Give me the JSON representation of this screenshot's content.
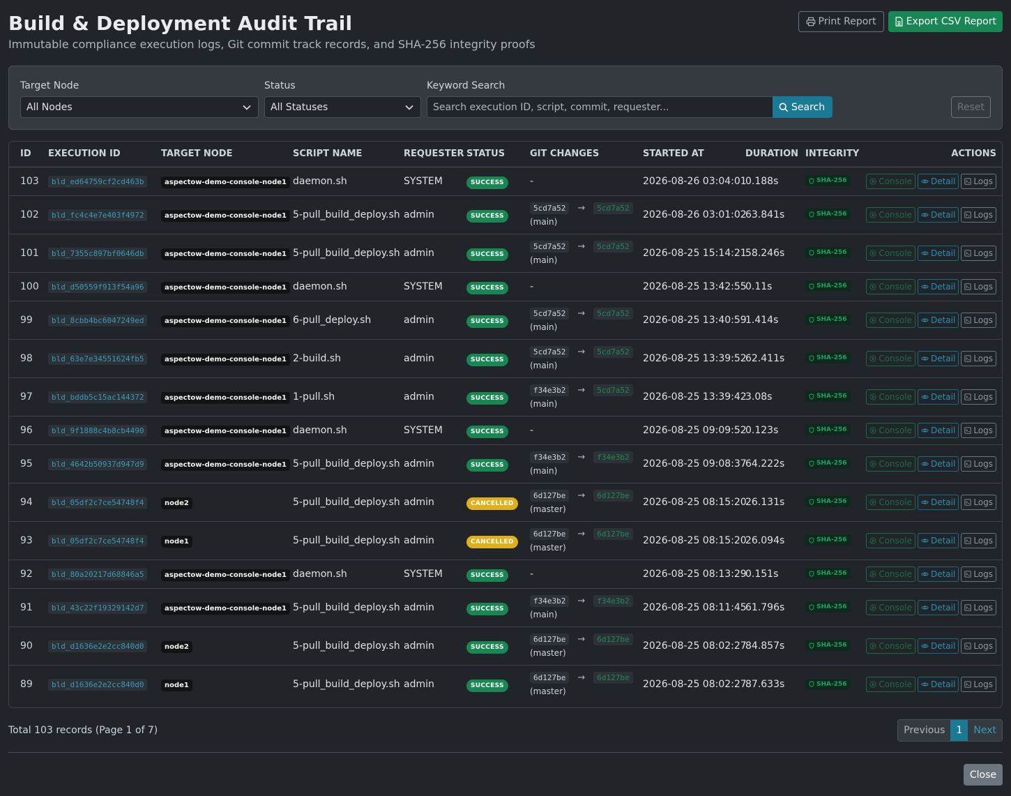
{
  "header": {
    "title": "Build & Deployment Audit Trail",
    "subtitle": "Immutable compliance execution logs, Git commit track records, and SHA-256 integrity proofs",
    "print_label": "Print Report",
    "export_label": "Export CSV Report"
  },
  "filters": {
    "node_label": "Target Node",
    "node_value": "All Nodes",
    "status_label": "Status",
    "status_value": "All Statuses",
    "keyword_label": "Keyword Search",
    "keyword_placeholder": "Search execution ID, script, commit, requester...",
    "search_label": "Search",
    "reset_label": "Reset"
  },
  "table": {
    "columns": [
      "ID",
      "EXECUTION ID",
      "TARGET NODE",
      "SCRIPT NAME",
      "REQUESTER",
      "STATUS",
      "GIT CHANGES",
      "STARTED AT",
      "DURATION",
      "INTEGRITY",
      "ACTIONS"
    ],
    "integrity_label": "SHA-256",
    "action_labels": {
      "console": "Console",
      "detail": "Detail",
      "logs": "Logs"
    },
    "rows": [
      {
        "id": "103",
        "exec_id": "bld_ed64759cf2cd463b",
        "node": "aspectow-demo-console-node1",
        "script": "daemon.sh",
        "requester": "SYSTEM",
        "status": "SUCCESS",
        "git": null,
        "started": "2026-08-26 03:04:01",
        "duration": "0.188s"
      },
      {
        "id": "102",
        "exec_id": "bld_fc4c4e7e403f4972",
        "node": "aspectow-demo-console-node1",
        "script": "5-pull_build_deploy.sh",
        "requester": "admin",
        "status": "SUCCESS",
        "git": {
          "from": "5cd7a52",
          "to": "5cd7a52",
          "branch": "(main)"
        },
        "started": "2026-08-26 03:01:02",
        "duration": "63.841s"
      },
      {
        "id": "101",
        "exec_id": "bld_7355c897bf0646db",
        "node": "aspectow-demo-console-node1",
        "script": "5-pull_build_deploy.sh",
        "requester": "admin",
        "status": "SUCCESS",
        "git": {
          "from": "5cd7a52",
          "to": "5cd7a52",
          "branch": "(main)"
        },
        "started": "2026-08-25 15:14:21",
        "duration": "58.246s"
      },
      {
        "id": "100",
        "exec_id": "bld_d50559f913f54a96",
        "node": "aspectow-demo-console-node1",
        "script": "daemon.sh",
        "requester": "SYSTEM",
        "status": "SUCCESS",
        "git": null,
        "started": "2026-08-25 13:42:55",
        "duration": "0.11s"
      },
      {
        "id": "99",
        "exec_id": "bld_8cbb4bc6047249ed",
        "node": "aspectow-demo-console-node1",
        "script": "6-pull_deploy.sh",
        "requester": "admin",
        "status": "SUCCESS",
        "git": {
          "from": "5cd7a52",
          "to": "5cd7a52",
          "branch": "(main)"
        },
        "started": "2026-08-25 13:40:59",
        "duration": "1.414s"
      },
      {
        "id": "98",
        "exec_id": "bld_63e7e34551624fb5",
        "node": "aspectow-demo-console-node1",
        "script": "2-build.sh",
        "requester": "admin",
        "status": "SUCCESS",
        "git": {
          "from": "5cd7a52",
          "to": "5cd7a52",
          "branch": "(main)"
        },
        "started": "2026-08-25 13:39:52",
        "duration": "62.411s"
      },
      {
        "id": "97",
        "exec_id": "bld_bddb5c15ac144372",
        "node": "aspectow-demo-console-node1",
        "script": "1-pull.sh",
        "requester": "admin",
        "status": "SUCCESS",
        "git": {
          "from": "f34e3b2",
          "to": "5cd7a52",
          "branch": "(main)"
        },
        "started": "2026-08-25 13:39:42",
        "duration": "3.08s"
      },
      {
        "id": "96",
        "exec_id": "bld_9f1888c4b8cb4490",
        "node": "aspectow-demo-console-node1",
        "script": "daemon.sh",
        "requester": "SYSTEM",
        "status": "SUCCESS",
        "git": null,
        "started": "2026-08-25 09:09:52",
        "duration": "0.123s"
      },
      {
        "id": "95",
        "exec_id": "bld_4642b50937d947d9",
        "node": "aspectow-demo-console-node1",
        "script": "5-pull_build_deploy.sh",
        "requester": "admin",
        "status": "SUCCESS",
        "git": {
          "from": "f34e3b2",
          "to": "f34e3b2",
          "branch": "(main)"
        },
        "started": "2026-08-25 09:08:37",
        "duration": "64.222s"
      },
      {
        "id": "94",
        "exec_id": "bld_05df2c7ce54748f4",
        "node": "node2",
        "script": "5-pull_build_deploy.sh",
        "requester": "admin",
        "status": "CANCELLED",
        "git": {
          "from": "6d127be",
          "to": "6d127be",
          "branch": "(master)"
        },
        "started": "2026-08-25 08:15:20",
        "duration": "26.131s"
      },
      {
        "id": "93",
        "exec_id": "bld_05df2c7ce54748f4",
        "node": "node1",
        "script": "5-pull_build_deploy.sh",
        "requester": "admin",
        "status": "CANCELLED",
        "git": {
          "from": "6d127be",
          "to": "6d127be",
          "branch": "(master)"
        },
        "started": "2026-08-25 08:15:20",
        "duration": "26.094s"
      },
      {
        "id": "92",
        "exec_id": "bld_80a20217d68846a5",
        "node": "aspectow-demo-console-node1",
        "script": "daemon.sh",
        "requester": "SYSTEM",
        "status": "SUCCESS",
        "git": null,
        "started": "2026-08-25 08:13:29",
        "duration": "0.151s"
      },
      {
        "id": "91",
        "exec_id": "bld_43c22f19329142d7",
        "node": "aspectow-demo-console-node1",
        "script": "5-pull_build_deploy.sh",
        "requester": "admin",
        "status": "SUCCESS",
        "git": {
          "from": "f34e3b2",
          "to": "f34e3b2",
          "branch": "(main)"
        },
        "started": "2026-08-25 08:11:45",
        "duration": "61.796s"
      },
      {
        "id": "90",
        "exec_id": "bld_d1636e2e2cc840d0",
        "node": "node2",
        "script": "5-pull_build_deploy.sh",
        "requester": "admin",
        "status": "SUCCESS",
        "git": {
          "from": "6d127be",
          "to": "6d127be",
          "branch": "(master)"
        },
        "started": "2026-08-25 08:02:27",
        "duration": "84.857s"
      },
      {
        "id": "89",
        "exec_id": "bld_d1636e2e2cc840d0",
        "node": "node1",
        "script": "5-pull_build_deploy.sh",
        "requester": "admin",
        "status": "SUCCESS",
        "git": {
          "from": "6d127be",
          "to": "6d127be",
          "branch": "(master)"
        },
        "started": "2026-08-25 08:02:27",
        "duration": "87.633s"
      }
    ]
  },
  "footer": {
    "summary": "Total 103 records (Page 1 of 7)",
    "previous_label": "Previous",
    "current_page": "1",
    "next_label": "Next",
    "close_label": "Close"
  },
  "colors": {
    "background": "#212529",
    "accent": "#1a7a96",
    "success": "#198754",
    "cancelled": "#e0b01c"
  },
  "icons": {
    "print": "printer-icon",
    "export": "file-csv-icon",
    "search": "search-icon",
    "dropdown": "chevron-down-icon",
    "integrity": "shield-icon",
    "console": "play-circle-icon",
    "detail": "eye-icon",
    "logs": "terminal-icon"
  }
}
